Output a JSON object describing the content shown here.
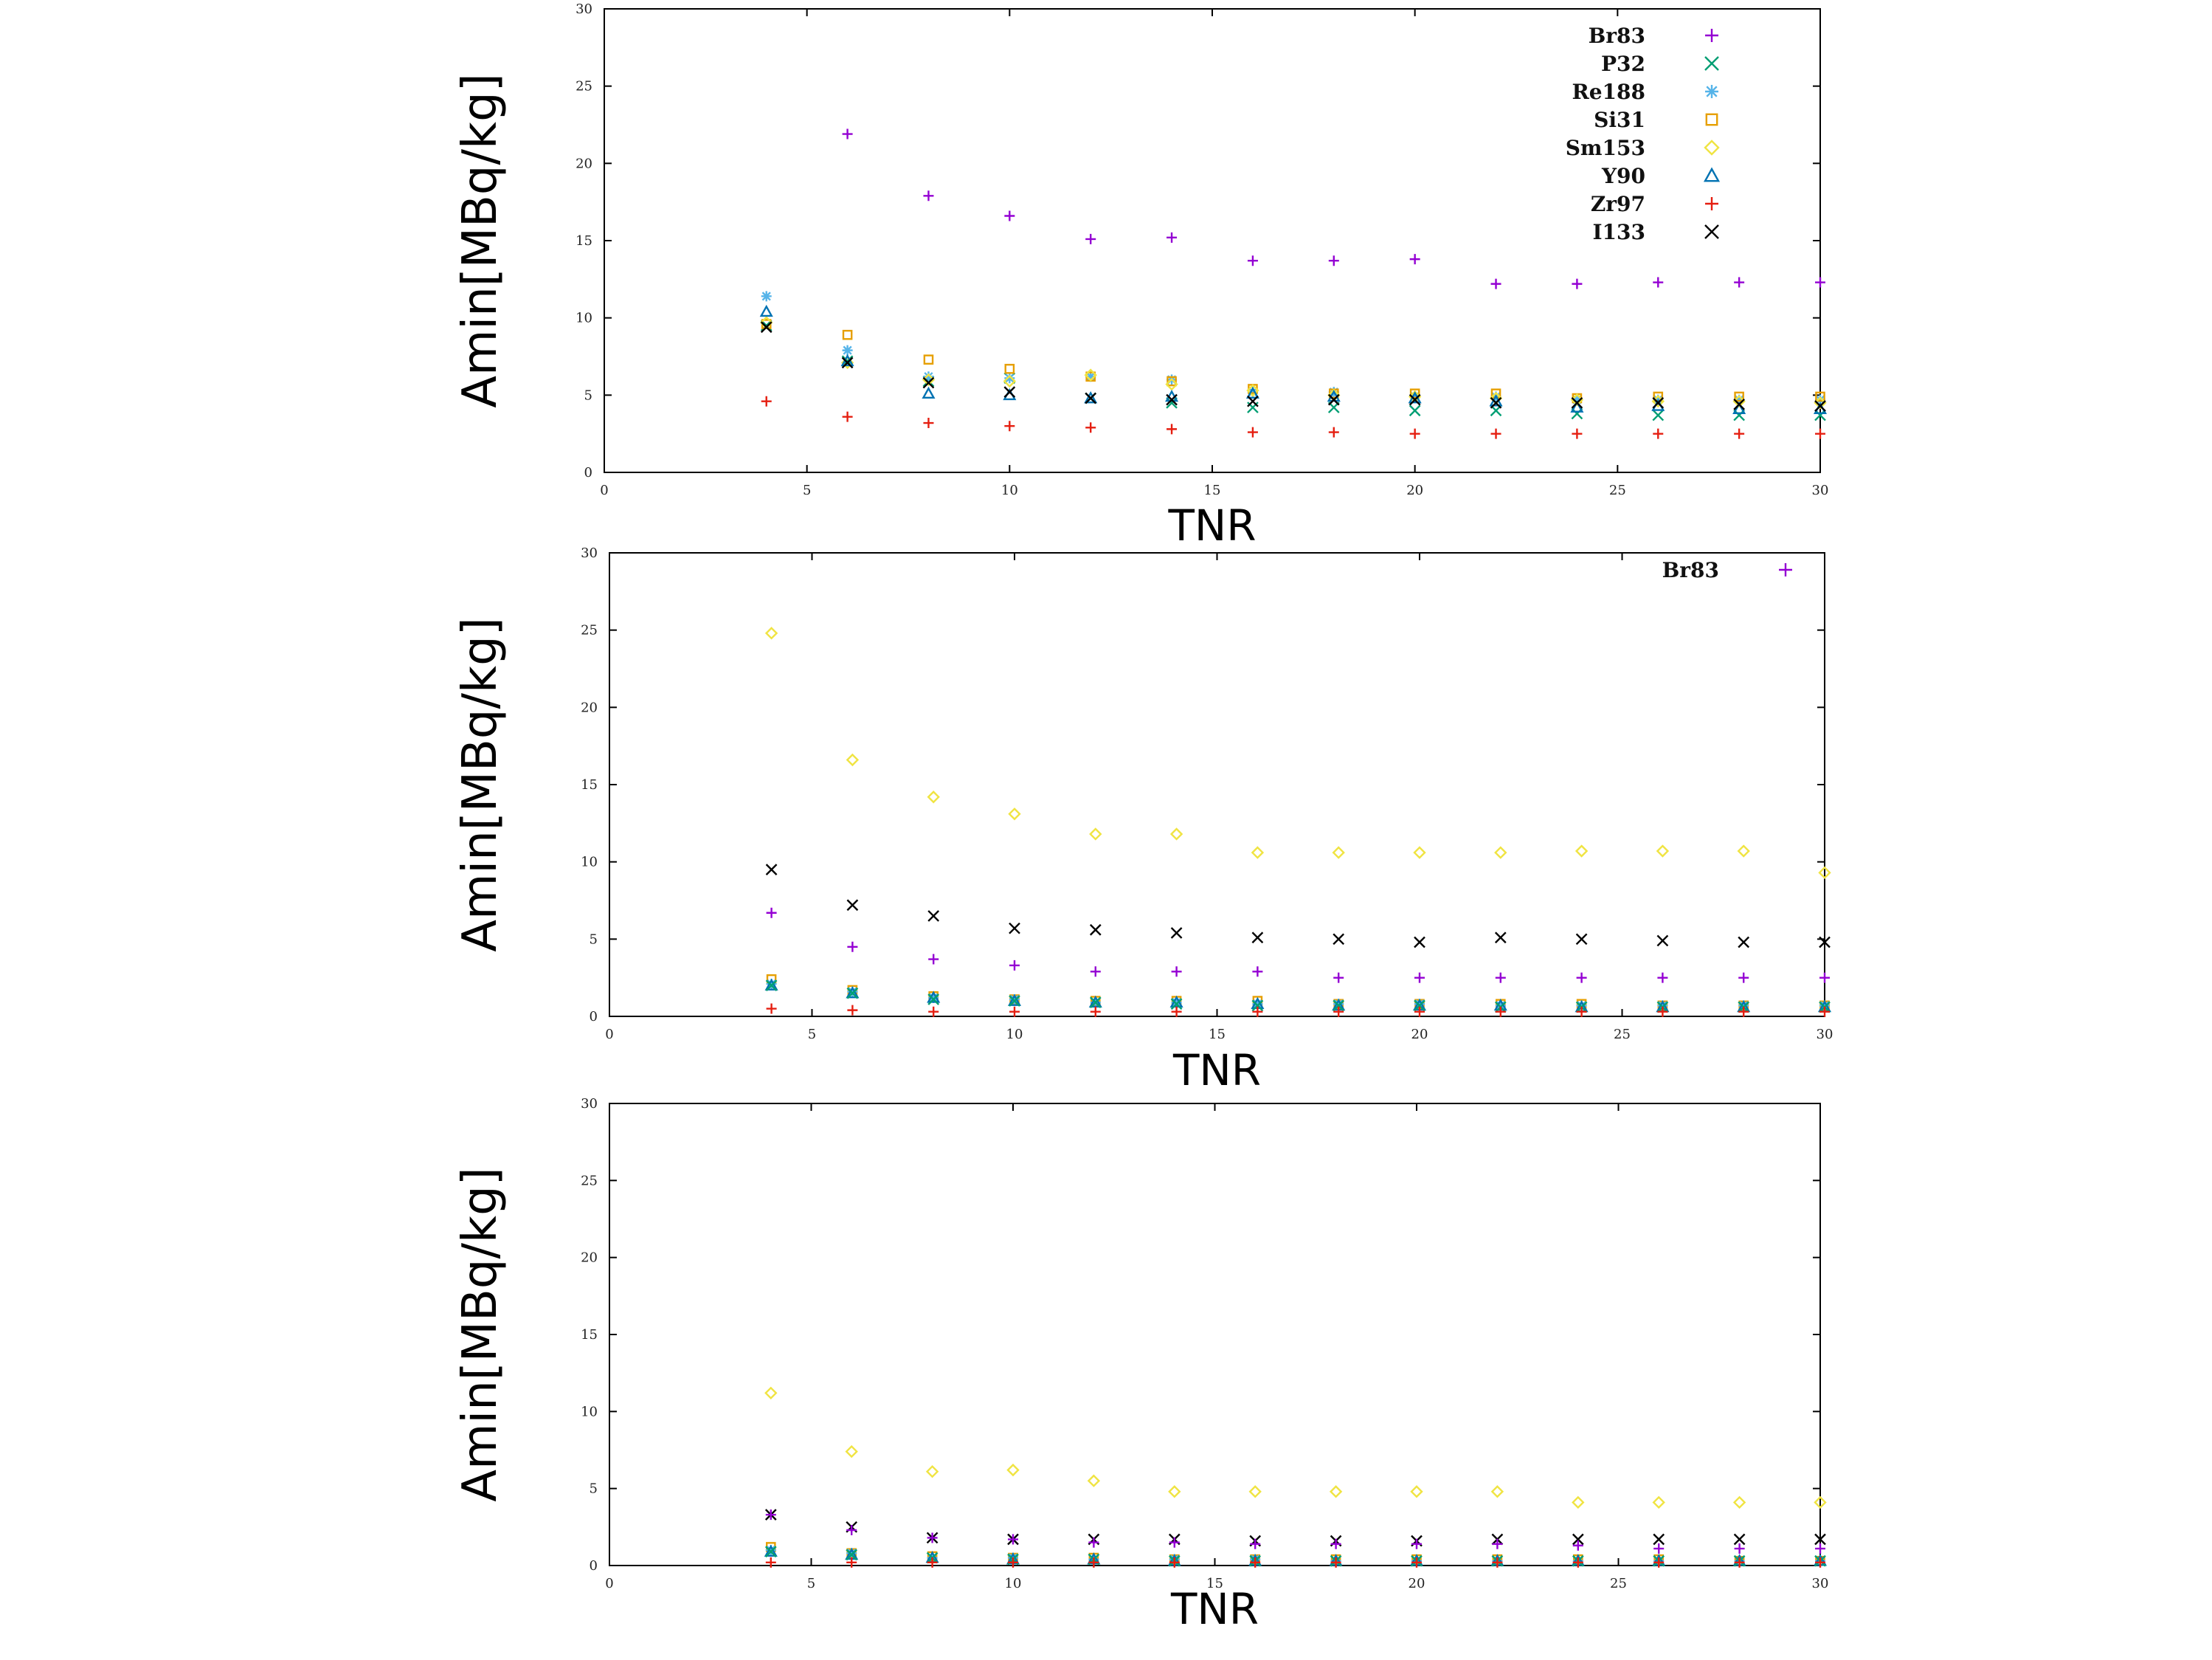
{
  "chart_data": [
    {
      "type": "scatter",
      "xlabel": "TNR",
      "ylabel": "Amin[MBq/kg]",
      "xlim": [
        0,
        30
      ],
      "ylim": [
        0,
        30
      ],
      "xticks": [
        "0",
        "5",
        "10",
        "15",
        "20",
        "25",
        "30"
      ],
      "yticks": [
        "0",
        "5",
        "10",
        "15",
        "20",
        "25",
        "30"
      ],
      "grid": false,
      "legend_position": "top-right",
      "x": [
        4,
        6,
        8,
        10,
        12,
        14,
        16,
        18,
        20,
        22,
        24,
        26,
        28,
        30
      ],
      "series": [
        {
          "name": "Br83",
          "marker": "plus",
          "color": "#9400d3",
          "values": [
            null,
            21.9,
            17.9,
            16.6,
            15.1,
            15.2,
            13.7,
            13.7,
            13.8,
            12.2,
            12.2,
            12.3,
            12.3,
            12.3
          ]
        },
        {
          "name": "P32",
          "marker": "cross",
          "color": "#009e73",
          "values": [
            9.5,
            7.2,
            5.9,
            6.1,
            4.8,
            4.5,
            4.2,
            4.2,
            4.0,
            4.0,
            3.8,
            3.7,
            3.7,
            3.7
          ]
        },
        {
          "name": "Re188",
          "marker": "star",
          "color": "#56b4e9",
          "values": [
            11.4,
            7.9,
            6.2,
            6.1,
            6.2,
            6.0,
            5.2,
            5.2,
            4.9,
            4.9,
            4.7,
            4.7,
            4.7,
            4.7
          ]
        },
        {
          "name": "Si31",
          "marker": "square",
          "color": "#e69f00",
          "values": [
            9.6,
            8.9,
            7.3,
            6.7,
            6.2,
            5.9,
            5.4,
            5.1,
            5.1,
            5.1,
            4.8,
            4.9,
            4.9,
            4.9
          ]
        },
        {
          "name": "Sm153",
          "marker": "diamond",
          "color": "#f0e442",
          "values": [
            9.7,
            7.1,
            6.0,
            5.9,
            6.3,
            5.7,
            5.3,
            5.0,
            4.9,
            4.8,
            4.7,
            4.6,
            4.6,
            4.5
          ]
        },
        {
          "name": "Y90",
          "marker": "triangle",
          "color": "#0072b2",
          "values": [
            10.4,
            7.2,
            5.1,
            5.0,
            4.8,
            4.9,
            5.1,
            4.9,
            4.8,
            4.6,
            4.2,
            4.3,
            4.1,
            4.1
          ]
        },
        {
          "name": "Zr97",
          "marker": "plus",
          "color": "#e51e10",
          "values": [
            4.6,
            3.6,
            3.2,
            3.0,
            2.9,
            2.8,
            2.6,
            2.6,
            2.5,
            2.5,
            2.5,
            2.5,
            2.5,
            2.5
          ]
        },
        {
          "name": "I133",
          "marker": "cross",
          "color": "#000000",
          "values": [
            9.4,
            7.1,
            5.8,
            5.2,
            4.8,
            4.7,
            4.6,
            4.7,
            4.7,
            4.5,
            4.5,
            4.5,
            4.4,
            4.3
          ]
        }
      ]
    },
    {
      "type": "scatter",
      "xlabel": "TNR",
      "ylabel": "Amin[MBq/kg]",
      "xlim": [
        0,
        30
      ],
      "ylim": [
        0,
        30
      ],
      "xticks": [
        "0",
        "5",
        "10",
        "15",
        "20",
        "25",
        "30"
      ],
      "yticks": [
        "0",
        "5",
        "10",
        "15",
        "20",
        "25",
        "30"
      ],
      "grid": false,
      "legend_position": "top-right",
      "x": [
        4,
        6,
        8,
        10,
        12,
        14,
        16,
        18,
        20,
        22,
        24,
        26,
        28,
        30
      ],
      "series": [
        {
          "name": "Br83",
          "marker": "plus",
          "color": "#9400d3",
          "values": [
            6.7,
            4.5,
            3.7,
            3.3,
            2.9,
            2.9,
            2.9,
            2.5,
            2.5,
            2.5,
            2.5,
            2.5,
            2.5,
            2.5
          ]
        },
        {
          "marker": "cross",
          "color": "#000000",
          "values": [
            9.5,
            7.2,
            6.5,
            5.7,
            5.6,
            5.4,
            5.1,
            5.0,
            4.8,
            5.1,
            5.0,
            4.9,
            4.8,
            4.8
          ]
        },
        {
          "marker": "diamond",
          "color": "#f0e442",
          "values": [
            24.8,
            16.6,
            14.2,
            13.1,
            11.8,
            11.8,
            10.6,
            10.6,
            10.6,
            10.6,
            10.7,
            10.7,
            10.7,
            9.3
          ]
        },
        {
          "marker": "square",
          "color": "#e69f00",
          "values": [
            2.4,
            1.7,
            1.3,
            1.1,
            1.0,
            1.0,
            1.0,
            0.8,
            0.8,
            0.8,
            0.8,
            0.7,
            0.7,
            0.7
          ]
        },
        {
          "marker": "star",
          "color": "#56b4e9",
          "values": [
            2.1,
            1.6,
            1.2,
            1.1,
            0.9,
            0.9,
            0.8,
            0.8,
            0.8,
            0.7,
            0.7,
            0.7,
            0.7,
            0.7
          ]
        },
        {
          "marker": "triangle",
          "color": "#0072b2",
          "values": [
            2.0,
            1.5,
            1.2,
            1.0,
            0.9,
            0.9,
            0.8,
            0.7,
            0.7,
            0.7,
            0.6,
            0.6,
            0.6,
            0.6
          ]
        },
        {
          "marker": "cross",
          "color": "#009e73",
          "values": [
            2.0,
            1.5,
            1.1,
            1.0,
            0.9,
            0.8,
            0.7,
            0.7,
            0.7,
            0.6,
            0.6,
            0.6,
            0.6,
            0.6
          ]
        },
        {
          "marker": "plus",
          "color": "#e51e10",
          "values": [
            0.5,
            0.4,
            0.3,
            0.3,
            0.3,
            0.3,
            0.3,
            0.3,
            0.3,
            0.3,
            0.3,
            0.3,
            0.3,
            0.3
          ]
        }
      ]
    },
    {
      "type": "scatter",
      "xlabel": "TNR",
      "ylabel": "Amin[MBq/kg]",
      "xlim": [
        0,
        30
      ],
      "ylim": [
        0,
        30
      ],
      "xticks": [
        "0",
        "5",
        "10",
        "15",
        "20",
        "25",
        "30"
      ],
      "yticks": [
        "0",
        "5",
        "10",
        "15",
        "20",
        "25",
        "30"
      ],
      "grid": false,
      "x": [
        4,
        6,
        8,
        10,
        12,
        14,
        16,
        18,
        20,
        22,
        24,
        26,
        28,
        30
      ],
      "series": [
        {
          "marker": "diamond",
          "color": "#f0e442",
          "values": [
            11.2,
            7.4,
            6.1,
            6.2,
            5.5,
            4.8,
            4.8,
            4.8,
            4.8,
            4.8,
            4.1,
            4.1,
            4.1,
            4.1
          ]
        },
        {
          "marker": "cross",
          "color": "#000000",
          "values": [
            3.3,
            2.5,
            1.8,
            1.7,
            1.7,
            1.7,
            1.6,
            1.6,
            1.6,
            1.7,
            1.7,
            1.7,
            1.7,
            1.7
          ]
        },
        {
          "marker": "plus",
          "color": "#9400d3",
          "values": [
            3.3,
            2.3,
            1.8,
            1.7,
            1.5,
            1.5,
            1.4,
            1.4,
            1.4,
            1.4,
            1.3,
            1.1,
            1.1,
            1.1
          ]
        },
        {
          "marker": "square",
          "color": "#e69f00",
          "values": [
            1.2,
            0.8,
            0.6,
            0.5,
            0.5,
            0.4,
            0.4,
            0.4,
            0.4,
            0.4,
            0.4,
            0.4,
            0.3,
            0.3
          ]
        },
        {
          "marker": "star",
          "color": "#56b4e9",
          "values": [
            1.0,
            0.8,
            0.5,
            0.5,
            0.4,
            0.4,
            0.4,
            0.3,
            0.3,
            0.3,
            0.3,
            0.3,
            0.3,
            0.3
          ]
        },
        {
          "marker": "triangle",
          "color": "#0072b2",
          "values": [
            0.9,
            0.7,
            0.5,
            0.4,
            0.4,
            0.3,
            0.3,
            0.3,
            0.3,
            0.3,
            0.3,
            0.3,
            0.3,
            0.3
          ]
        },
        {
          "marker": "cross",
          "color": "#009e73",
          "values": [
            0.9,
            0.7,
            0.5,
            0.4,
            0.4,
            0.3,
            0.3,
            0.3,
            0.3,
            0.3,
            0.3,
            0.3,
            0.3,
            0.3
          ]
        },
        {
          "marker": "plus",
          "color": "#e51e10",
          "values": [
            0.2,
            0.2,
            0.2,
            0.2,
            0.2,
            0.2,
            0.2,
            0.2,
            0.2,
            0.2,
            0.2,
            0.2,
            0.2,
            0.2
          ]
        }
      ]
    }
  ]
}
